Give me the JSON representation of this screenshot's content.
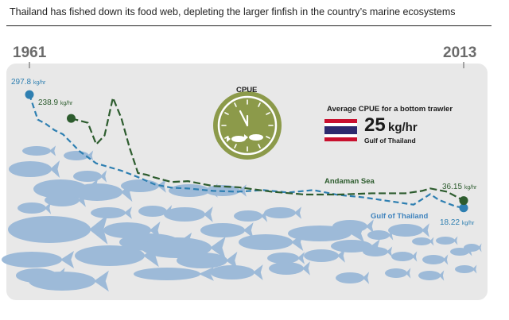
{
  "title": "Thailand has fished down its food web, depleting the larger finfish in the country’s marine ecosystems",
  "start_year": "1961",
  "end_year": "2013",
  "clock_label": "CPUE",
  "info": {
    "heading": "Average CPUE for a bottom trawler",
    "value": "25",
    "unit": "kg/hr",
    "location": "Gulf of Thailand"
  },
  "colors": {
    "gulf": "#2e7fb1",
    "andaman": "#2d5c2e",
    "gulf_label": "#3f83bd",
    "clock": "#8c9a4a",
    "fish": "#9dbad8",
    "panel": "#e8e8e8"
  },
  "chart_data": {
    "type": "line",
    "x_range": [
      1961,
      2013
    ],
    "series": [
      {
        "name": "Gulf of Thailand",
        "color": "#2e7fb1",
        "start_label": "297.8",
        "end_label": "18.22",
        "unit": "kg/hr",
        "points": [
          [
            1961,
            297.8
          ],
          [
            1962,
            236
          ],
          [
            1963,
            225
          ],
          [
            1964,
            210
          ],
          [
            1965,
            200
          ],
          [
            1967,
            158
          ],
          [
            1969,
            128
          ],
          [
            1972,
            110
          ],
          [
            1974,
            94
          ],
          [
            1976,
            76
          ],
          [
            1978,
            68
          ],
          [
            1980,
            66
          ],
          [
            1983,
            60
          ],
          [
            1986,
            58
          ],
          [
            1989,
            62
          ],
          [
            1992,
            56
          ],
          [
            1995,
            62
          ],
          [
            1998,
            50
          ],
          [
            2001,
            44
          ],
          [
            2003,
            38
          ],
          [
            2005,
            32
          ],
          [
            2007,
            26
          ],
          [
            2009,
            52
          ],
          [
            2010,
            38
          ],
          [
            2012,
            22
          ],
          [
            2013,
            18.22
          ]
        ]
      },
      {
        "name": "Andaman Sea",
        "color": "#2d5c2e",
        "start_label": "238.9",
        "end_label": "36.15",
        "unit": "kg/hr",
        "points": [
          [
            1966,
            238.9
          ],
          [
            1968,
            228
          ],
          [
            1969,
            175
          ],
          [
            1970,
            197
          ],
          [
            1971,
            290
          ],
          [
            1972,
            240
          ],
          [
            1973,
            166
          ],
          [
            1974,
            104
          ],
          [
            1975,
            100
          ],
          [
            1976,
            93
          ],
          [
            1978,
            82
          ],
          [
            1980,
            84
          ],
          [
            1983,
            72
          ],
          [
            1986,
            69
          ],
          [
            1990,
            58
          ],
          [
            1994,
            51
          ],
          [
            1998,
            51
          ],
          [
            2002,
            54
          ],
          [
            2006,
            54
          ],
          [
            2008,
            60
          ],
          [
            2009,
            66
          ],
          [
            2011,
            58
          ],
          [
            2013,
            36.15
          ]
        ]
      }
    ]
  }
}
